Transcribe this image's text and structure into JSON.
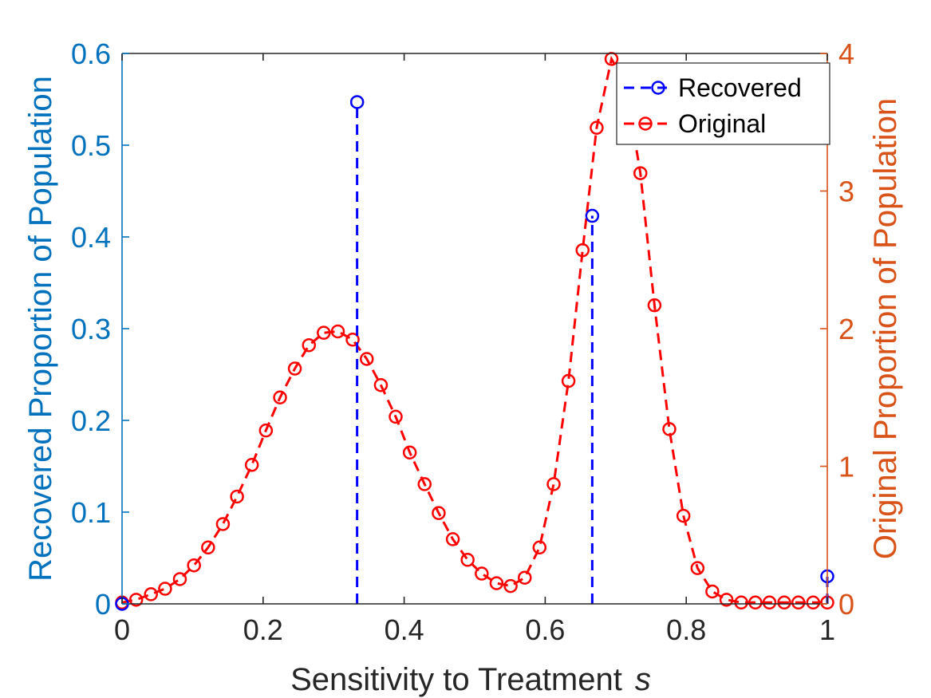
{
  "chart_data": {
    "type": "line",
    "title": "",
    "xlabel": "Sensitivity to Treatment",
    "xlabel_symbol": "s",
    "ylabel_left": "Recovered Proportion of Population",
    "ylabel_right": "Original Proportion of Population",
    "xlim": [
      0,
      1
    ],
    "ylim_left": [
      0,
      0.6
    ],
    "ylim_right": [
      0,
      4
    ],
    "x_ticks": [
      0,
      0.2,
      0.4,
      0.6,
      0.8,
      1
    ],
    "x_tick_labels": [
      "0",
      "0.2",
      "0.4",
      "0.6",
      "0.8",
      "1"
    ],
    "y_left_ticks": [
      0,
      0.1,
      0.2,
      0.3,
      0.4,
      0.5,
      0.6
    ],
    "y_left_tick_labels": [
      "0",
      "0.1",
      "0.2",
      "0.3",
      "0.4",
      "0.5",
      "0.6"
    ],
    "y_right_ticks": [
      0,
      1,
      2,
      3,
      4
    ],
    "y_right_tick_labels": [
      "0",
      "1",
      "2",
      "3",
      "4"
    ],
    "grid": false,
    "legend_position": "top-right",
    "colors": {
      "left_axis": "#0072BD",
      "right_axis": "#D95319",
      "recovered": "#0000FF",
      "original": "#FF0000",
      "axes": "#262626"
    },
    "series": [
      {
        "name": "Recovered",
        "axis": "left",
        "style": "stem",
        "x": [
          0,
          0.3333,
          0.6667,
          1
        ],
        "y": [
          0,
          0.547,
          0.423,
          0.03
        ]
      },
      {
        "name": "Original",
        "axis": "right",
        "style": "dashed-line-circles",
        "x": [
          0,
          0.02,
          0.041,
          0.061,
          0.082,
          0.102,
          0.122,
          0.143,
          0.163,
          0.184,
          0.204,
          0.224,
          0.245,
          0.265,
          0.286,
          0.306,
          0.327,
          0.347,
          0.367,
          0.388,
          0.408,
          0.429,
          0.449,
          0.469,
          0.49,
          0.51,
          0.531,
          0.551,
          0.571,
          0.592,
          0.612,
          0.633,
          0.653,
          0.673,
          0.694,
          0.714,
          0.735,
          0.755,
          0.776,
          0.796,
          0.816,
          0.837,
          0.857,
          0.878,
          0.898,
          0.918,
          0.939,
          0.959,
          0.98,
          1
        ],
        "y": [
          0.01,
          0.03,
          0.07,
          0.11,
          0.18,
          0.28,
          0.41,
          0.58,
          0.78,
          1.01,
          1.26,
          1.5,
          1.71,
          1.88,
          1.97,
          1.98,
          1.92,
          1.78,
          1.59,
          1.36,
          1.1,
          0.87,
          0.66,
          0.47,
          0.32,
          0.22,
          0.15,
          0.13,
          0.19,
          0.41,
          0.87,
          1.62,
          2.57,
          3.46,
          3.96,
          3.78,
          3.13,
          2.17,
          1.27,
          0.64,
          0.26,
          0.09,
          0.03,
          0.01,
          0.01,
          0.01,
          0.01,
          0.01,
          0.01,
          0.01
        ]
      }
    ]
  }
}
